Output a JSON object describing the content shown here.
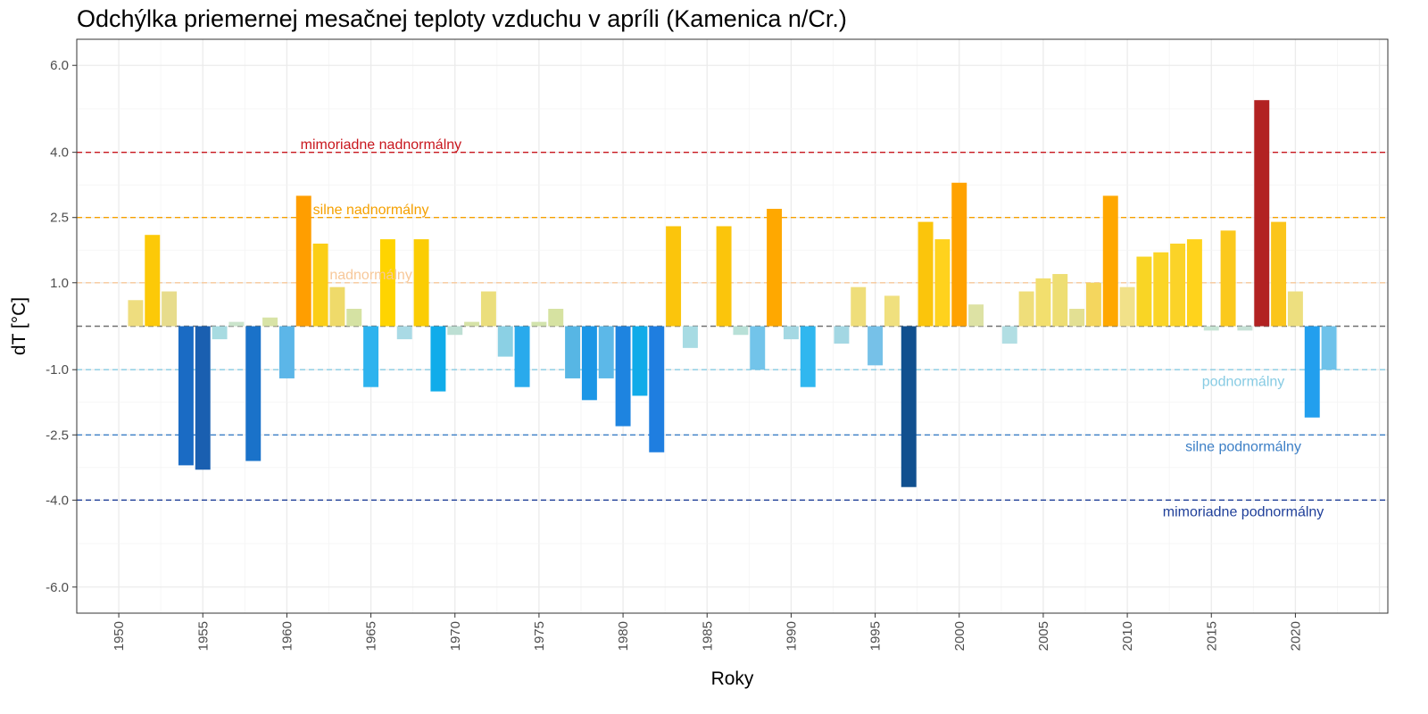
{
  "chart_data": {
    "type": "bar",
    "title": "Odchýlka priemernej mesačnej teploty vzduchu v apríli (Kamenica n/Cr.)",
    "xlabel": "Roky",
    "ylabel": "dT [°C]",
    "ylim": [
      -6.6,
      6.6
    ],
    "xlim": [
      1947.5,
      2025.5
    ],
    "grid": true,
    "x_ticks": [
      1950,
      1955,
      1960,
      1965,
      1970,
      1975,
      1980,
      1985,
      1990,
      1995,
      2000,
      2005,
      2010,
      2015,
      2020
    ],
    "y_ticks": [
      {
        "value": 6,
        "label": "6.0"
      },
      {
        "value": 4,
        "label": "4.0"
      },
      {
        "value": 2.5,
        "label": "2.5"
      },
      {
        "value": 1,
        "label": "1.0"
      },
      {
        "value": -1,
        "label": "-1.0"
      },
      {
        "value": -2.5,
        "label": "-2.5"
      },
      {
        "value": -4,
        "label": "-4.0"
      },
      {
        "value": -6,
        "label": "-6.0"
      }
    ],
    "reference_lines": [
      {
        "value": 4,
        "label": "mimoriadne nadnormálny",
        "color": "#c8161d",
        "label_x": 1965.6,
        "label_y": 4.2
      },
      {
        "value": 2.5,
        "label": "silne nadnormálny",
        "color": "#f5a000",
        "label_x": 1965.0,
        "label_y": 2.7
      },
      {
        "value": 1,
        "label": "nadnormálny",
        "color": "#f7c89a",
        "label_x": 1965.0,
        "label_y": 1.2
      },
      {
        "value": 0,
        "label": "",
        "color": "#707070"
      },
      {
        "value": -1,
        "label": "podnormálny",
        "color": "#87cbe3",
        "label_x": 2016.9,
        "label_y": -1.25
      },
      {
        "value": -2.5,
        "label": "silne podnormálny",
        "color": "#3c7fc6",
        "label_x": 2016.9,
        "label_y": -2.75
      },
      {
        "value": -4,
        "label": "mimoriadne podnormálny",
        "color": "#1f3f99",
        "label_x": 2016.9,
        "label_y": -4.25
      }
    ],
    "x": [
      1951,
      1952,
      1953,
      1954,
      1955,
      1956,
      1957,
      1958,
      1959,
      1960,
      1961,
      1962,
      1963,
      1964,
      1965,
      1966,
      1967,
      1968,
      1969,
      1970,
      1971,
      1972,
      1973,
      1974,
      1975,
      1976,
      1977,
      1978,
      1979,
      1980,
      1981,
      1982,
      1983,
      1984,
      1985,
      1986,
      1987,
      1988,
      1989,
      1990,
      1991,
      1992,
      1993,
      1994,
      1995,
      1996,
      1997,
      1998,
      1999,
      2000,
      2001,
      2002,
      2003,
      2004,
      2005,
      2006,
      2007,
      2008,
      2009,
      2010,
      2011,
      2012,
      2013,
      2014,
      2015,
      2016,
      2017,
      2018,
      2019,
      2020,
      2021,
      2022
    ],
    "values": [
      0.6,
      2.1,
      0.8,
      -3.2,
      -3.3,
      -0.3,
      0.1,
      -3.1,
      0.2,
      -1.2,
      3.0,
      1.9,
      0.9,
      0.4,
      -1.4,
      2.0,
      -0.3,
      2.0,
      -1.5,
      -0.2,
      0.1,
      0.8,
      -0.7,
      -1.4,
      0.1,
      0.4,
      -1.2,
      -1.7,
      -1.2,
      -2.3,
      -1.6,
      -2.9,
      2.3,
      -0.5,
      0.0,
      2.3,
      -0.2,
      -1.0,
      2.7,
      -0.3,
      -1.4,
      0.0,
      -0.4,
      0.9,
      -0.9,
      0.7,
      -3.7,
      2.4,
      2.0,
      3.3,
      0.5,
      0.0,
      -0.4,
      0.8,
      1.1,
      1.2,
      0.4,
      1.0,
      3.0,
      0.9,
      1.6,
      1.7,
      1.9,
      2.0,
      -0.1,
      2.2,
      -0.1,
      5.2,
      2.4,
      0.8,
      -2.1,
      -1.0
    ],
    "colors": [
      "#eedd7f",
      "#fcc908",
      "#e7dc8c",
      "#1a6bc4",
      "#1a5fb0",
      "#a7dbe1",
      "#cbe4cc",
      "#1a72c9",
      "#d8e3a6",
      "#5cb6e8",
      "#ff9e00",
      "#fbce16",
      "#efda6a",
      "#d5e2a3",
      "#2eb3ee",
      "#ffd400",
      "#a9dae5",
      "#fbcd04",
      "#10acea",
      "#bddfd3",
      "#d6e2a7",
      "#ebde7c",
      "#8bd0e4",
      "#29aaec",
      "#d2e3ad",
      "#d6e2a1",
      "#57b6e4",
      "#1b96e6",
      "#5cb8e8",
      "#1e84e0",
      "#10abe9",
      "#1f7ee0",
      "#fbc50c",
      "#a7dbe3",
      "#ffffff",
      "#fbc50c",
      "#b8e0d7",
      "#72c4ea",
      "#ffa800",
      "#a4d8e3",
      "#30b7ef",
      "#ffffff",
      "#a3d7e3",
      "#efde7a",
      "#76c1e8",
      "#f0e07e",
      "#11508f",
      "#fbc50c",
      "#ffd21d",
      "#ffa200",
      "#dde2a4",
      "#ffffff",
      "#b1dee3",
      "#efde7a",
      "#f2df6e",
      "#eede73",
      "#e3e093",
      "#f4d65e",
      "#ffa800",
      "#f1e189",
      "#f9d525",
      "#fbd526",
      "#fbd328",
      "#ffd31c",
      "#c7e5d5",
      "#fbc91d",
      "#c6e1d6",
      "#b22222",
      "#fbc51b",
      "#eddf7f",
      "#229fee",
      "#6ec2ea"
    ]
  }
}
